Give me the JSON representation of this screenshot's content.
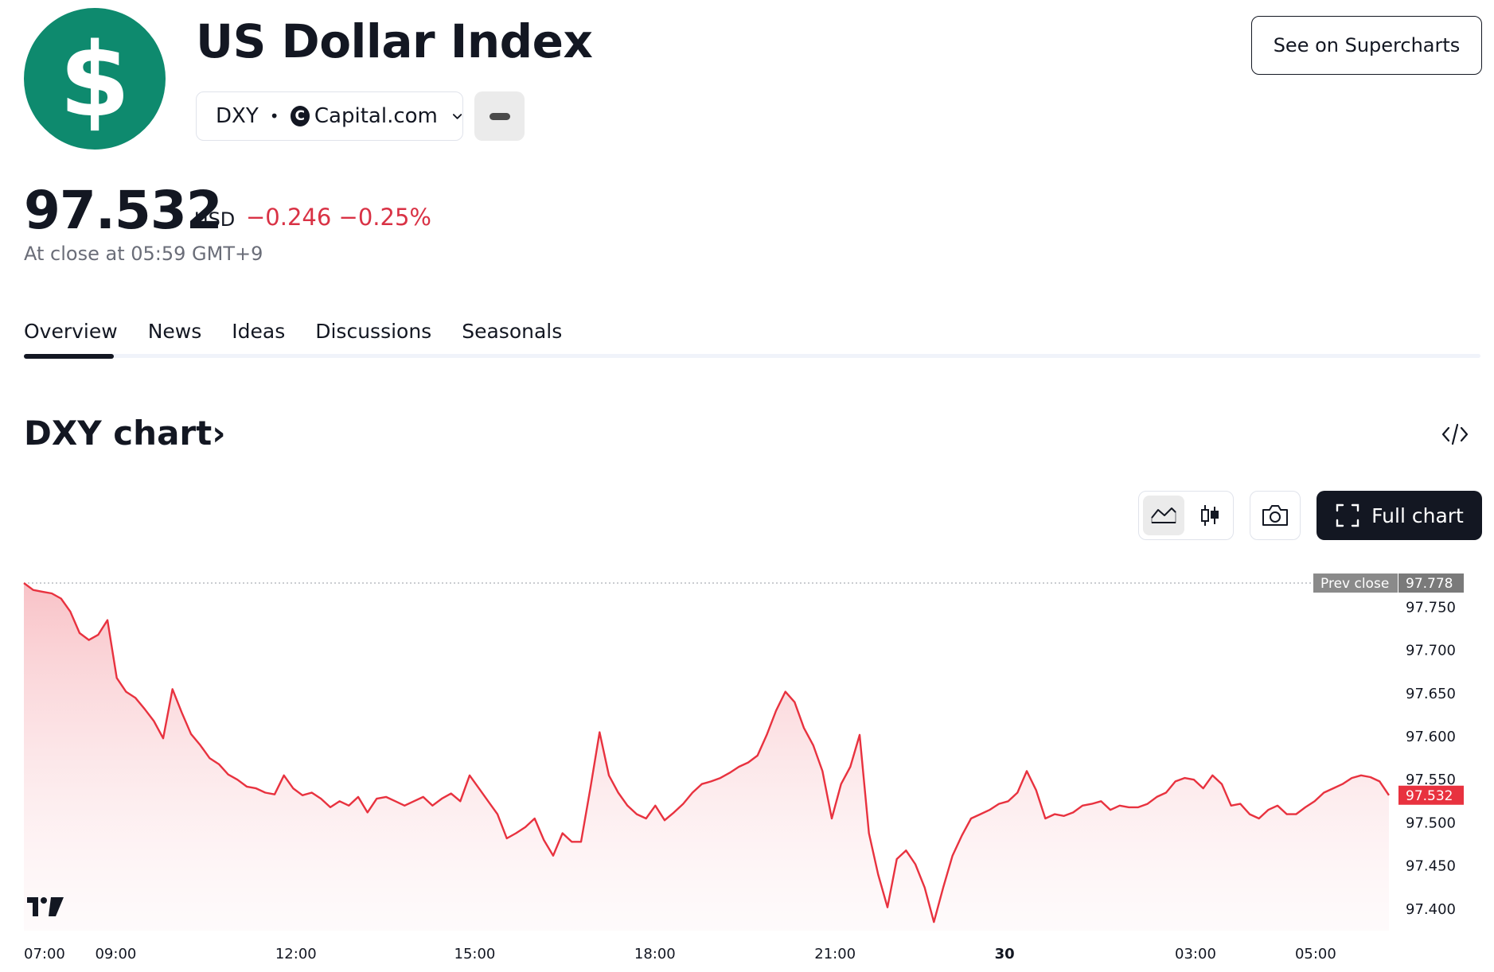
{
  "header": {
    "logo_glyph": "$",
    "title": "US Dollar Index",
    "symbol": "DXY",
    "separator": "•",
    "exchange": "Capital.com",
    "exchange_icon_glyph": "C",
    "supercharts_label": "See on Supercharts"
  },
  "quote": {
    "price": "97.532",
    "currency": "USD",
    "change": "−0.246",
    "change_percent": "−0.25%",
    "close_time": "At close at 05:59 GMT+9",
    "down_color": "#d93245"
  },
  "tabs": [
    {
      "label": "Overview",
      "active": true
    },
    {
      "label": "News",
      "active": false
    },
    {
      "label": "Ideas",
      "active": false
    },
    {
      "label": "Discussions",
      "active": false
    },
    {
      "label": "Seasonals",
      "active": false
    }
  ],
  "chart_section": {
    "title": "DXY chart",
    "title_chevron": "›",
    "full_chart_label": "Full chart"
  },
  "chart_data": {
    "type": "area",
    "ylim": [
      97.375,
      97.79
    ],
    "y_ticks": [
      "97.750",
      "97.700",
      "97.650",
      "97.600",
      "97.550",
      "97.500",
      "97.450",
      "97.400"
    ],
    "x_ticks": [
      "07:00",
      "09:00",
      "12:00",
      "15:00",
      "18:00",
      "21:00",
      "30",
      "03:00",
      "05:00"
    ],
    "prev_close": {
      "label": "Prev close",
      "value": "97.778"
    },
    "last_value_label": "97.532",
    "line_color": "#e8323f",
    "grid": false,
    "series": [
      {
        "values": [
          97.778,
          97.77,
          97.768,
          97.766,
          97.76,
          97.745,
          97.72,
          97.712,
          97.718,
          97.735,
          97.668,
          97.652,
          97.645,
          97.632,
          97.618,
          97.598,
          97.655,
          97.628,
          97.603,
          97.59,
          97.575,
          97.568,
          97.556,
          97.55,
          97.542,
          97.54,
          97.535,
          97.533,
          97.555,
          97.54,
          97.532,
          97.535,
          97.528,
          97.518,
          97.525,
          97.52,
          97.53,
          97.512,
          97.528,
          97.53,
          97.525,
          97.52,
          97.525,
          97.53,
          97.52,
          97.528,
          97.534,
          97.525,
          97.555,
          97.54,
          97.525,
          97.51,
          97.482,
          97.488,
          97.495,
          97.505,
          97.48,
          97.462,
          97.488,
          97.478,
          97.478,
          97.54,
          97.605,
          97.555,
          97.535,
          97.52,
          97.51,
          97.505,
          97.52,
          97.503,
          97.512,
          97.522,
          97.535,
          97.545,
          97.548,
          97.552,
          97.558,
          97.565,
          97.57,
          97.578,
          97.602,
          97.63,
          97.652,
          97.64,
          97.61,
          97.59,
          97.56,
          97.505,
          97.545,
          97.565,
          97.602,
          97.488,
          97.44,
          97.402,
          97.458,
          97.468,
          97.452,
          97.425,
          97.385,
          97.425,
          97.462,
          97.485,
          97.505,
          97.51,
          97.515,
          97.522,
          97.525,
          97.535,
          97.56,
          97.538,
          97.505,
          97.51,
          97.508,
          97.512,
          97.52,
          97.522,
          97.525,
          97.515,
          97.52,
          97.518,
          97.518,
          97.522,
          97.53,
          97.535,
          97.548,
          97.552,
          97.55,
          97.54,
          97.555,
          97.545,
          97.52,
          97.522,
          97.51,
          97.505,
          97.515,
          97.52,
          97.51,
          97.51,
          97.518,
          97.525,
          97.535,
          97.54,
          97.545,
          97.552,
          97.555,
          97.553,
          97.548,
          97.532
        ]
      }
    ]
  }
}
